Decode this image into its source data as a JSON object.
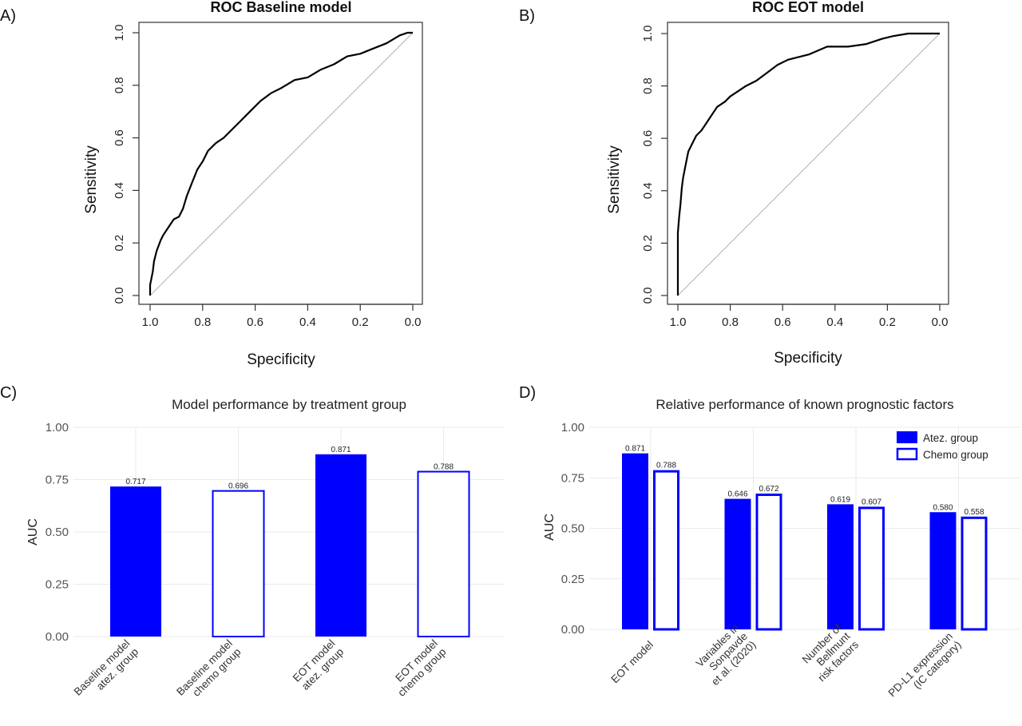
{
  "panels": {
    "a": "A)",
    "b": "B)",
    "c": "C)",
    "d": "D)"
  },
  "colors": {
    "atez": "#0000ff",
    "chemo_fill": "#ffffff",
    "diagonal": "#bbbbbb",
    "roc_line": "#000000",
    "grid": "#ebebeb"
  },
  "chart_data": [
    {
      "type": "line",
      "title": "ROC Baseline model",
      "xlabel": "Specificity",
      "ylabel": "Sensitivity",
      "xlim": [
        1.0,
        0.0
      ],
      "ylim": [
        0.0,
        1.0
      ],
      "x_reversed": true,
      "xticks": [
        "1.0",
        "0.8",
        "0.6",
        "0.4",
        "0.2",
        "0.0"
      ],
      "yticks": [
        "0.0",
        "0.2",
        "0.4",
        "0.6",
        "0.8",
        "1.0"
      ],
      "diagonal": true,
      "series": [
        {
          "specificity": [
            1.0,
            1.0,
            0.99,
            0.985,
            0.975,
            0.96,
            0.95,
            0.93,
            0.91,
            0.89,
            0.875,
            0.86,
            0.84,
            0.82,
            0.8,
            0.78,
            0.75,
            0.72,
            0.7,
            0.66,
            0.62,
            0.58,
            0.54,
            0.5,
            0.45,
            0.4,
            0.35,
            0.3,
            0.25,
            0.2,
            0.15,
            0.1,
            0.05,
            0.02,
            0.0
          ],
          "sensitivity": [
            0.0,
            0.04,
            0.09,
            0.13,
            0.17,
            0.21,
            0.23,
            0.26,
            0.29,
            0.3,
            0.33,
            0.38,
            0.43,
            0.48,
            0.51,
            0.55,
            0.58,
            0.6,
            0.62,
            0.66,
            0.7,
            0.74,
            0.77,
            0.79,
            0.82,
            0.83,
            0.86,
            0.88,
            0.91,
            0.92,
            0.94,
            0.96,
            0.99,
            1.0,
            1.0
          ]
        }
      ]
    },
    {
      "type": "line",
      "title": "ROC EOT model",
      "xlabel": "Specificity",
      "ylabel": "Sensitivity",
      "xlim": [
        1.0,
        0.0
      ],
      "ylim": [
        0.0,
        1.0
      ],
      "x_reversed": true,
      "xticks": [
        "1.0",
        "0.8",
        "0.6",
        "0.4",
        "0.2",
        "0.0"
      ],
      "yticks": [
        "0.0",
        "0.2",
        "0.4",
        "0.6",
        "0.8",
        "1.0"
      ],
      "diagonal": true,
      "series": [
        {
          "specificity": [
            1.0,
            1.0,
            0.995,
            0.99,
            0.985,
            0.98,
            0.97,
            0.96,
            0.95,
            0.93,
            0.91,
            0.89,
            0.87,
            0.85,
            0.82,
            0.8,
            0.77,
            0.74,
            0.7,
            0.66,
            0.62,
            0.58,
            0.5,
            0.43,
            0.35,
            0.28,
            0.22,
            0.18,
            0.12,
            0.05,
            0.0
          ],
          "sensitivity": [
            0.0,
            0.24,
            0.3,
            0.35,
            0.41,
            0.45,
            0.5,
            0.55,
            0.57,
            0.61,
            0.63,
            0.66,
            0.69,
            0.72,
            0.74,
            0.76,
            0.78,
            0.8,
            0.82,
            0.85,
            0.88,
            0.9,
            0.92,
            0.95,
            0.95,
            0.96,
            0.98,
            0.99,
            1.0,
            1.0,
            1.0
          ]
        }
      ]
    },
    {
      "type": "bar",
      "title": "Model performance by treatment group",
      "xlabel": "",
      "ylabel": "AUC",
      "ylim": [
        0,
        1.0
      ],
      "yticks": [
        "0.00",
        "0.25",
        "0.50",
        "0.75",
        "1.00"
      ],
      "categories": [
        "Baseline model\natez. group",
        "Baseline model\nchemo group",
        "EOT model\natez. group",
        "EOT model\nchemo group"
      ],
      "values": [
        0.717,
        0.696,
        0.871,
        0.788
      ],
      "value_labels": [
        "0.717",
        "0.696",
        "0.871",
        "0.788"
      ],
      "fill": [
        "atez",
        "chemo",
        "atez",
        "chemo"
      ]
    },
    {
      "type": "bar",
      "title": "Relative performance of known prognostic factors",
      "xlabel": "",
      "ylabel": "AUC",
      "ylim": [
        0,
        1.0
      ],
      "yticks": [
        "0.00",
        "0.25",
        "0.50",
        "0.75",
        "1.00"
      ],
      "categories": [
        "EOT model",
        "Variables in\nSonpavde\net al. (2020)",
        "Number of\nBellmunt\nrisk factors",
        "PD-L1 expression\n(IC category)"
      ],
      "series": [
        {
          "name": "Atez. group",
          "values": [
            0.871,
            0.646,
            0.619,
            0.58
          ],
          "value_labels": [
            "0.871",
            "0.646",
            "0.619",
            "0.580"
          ]
        },
        {
          "name": "Chemo group",
          "values": [
            0.788,
            0.672,
            0.607,
            0.558
          ],
          "value_labels": [
            "0.788",
            "0.672",
            "0.607",
            "0.558"
          ]
        }
      ],
      "legend_position": "top-right"
    }
  ]
}
